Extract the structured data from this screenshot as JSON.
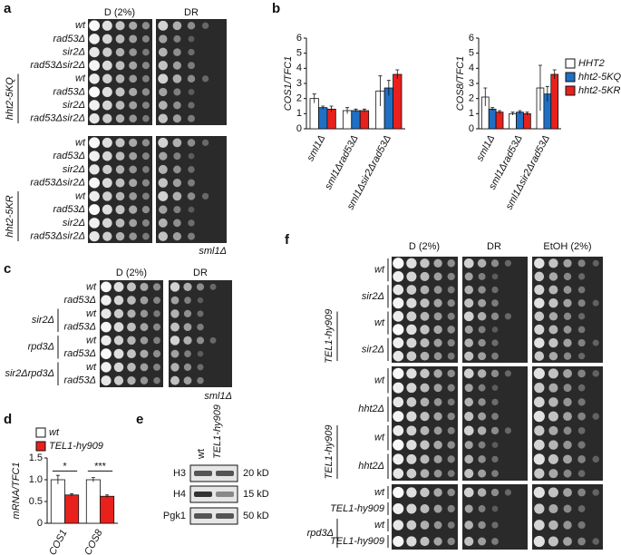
{
  "panel_labels": [
    "a",
    "b",
    "c",
    "d",
    "e",
    "f"
  ],
  "panel_a": {
    "columns": [
      "D (2%)",
      "DR"
    ],
    "blocks": [
      {
        "group": "hht2-5KQ",
        "rows": [
          "wt",
          "rad53Δ",
          "sir2Δ",
          "rad53Δsir2Δ",
          "wt",
          "rad53Δ",
          "sir2Δ",
          "rad53Δsir2Δ"
        ]
      },
      {
        "group": "hht2-5KR",
        "rows": [
          "wt",
          "rad53Δ",
          "sir2Δ",
          "rad53Δsir2Δ",
          "wt",
          "rad53Δ",
          "sir2Δ",
          "rad53Δsir2Δ"
        ]
      }
    ],
    "footnote": "sml1Δ"
  },
  "panel_c": {
    "columns": [
      "D (2%)",
      "DR"
    ],
    "rows": [
      "wt",
      "rad53Δ",
      "wt",
      "rad53Δ",
      "wt",
      "rad53Δ",
      "wt",
      "rad53Δ"
    ],
    "groups": [
      "sir2Δ",
      "rpd3Δ",
      "sir2Δrpd3Δ"
    ],
    "footnote": "sml1Δ"
  },
  "panel_e": {
    "lanes": [
      "wt",
      "TEL1-hy909"
    ],
    "proteins": [
      "H3",
      "H4",
      "Pgk1"
    ],
    "sizes": [
      "20 kD",
      "15 kD",
      "50 kD"
    ]
  },
  "panel_f": {
    "columns": [
      "D (2%)",
      "DR",
      "EtOH (2%)"
    ],
    "blocks": [
      {
        "group": "TEL1-hy909",
        "rows": [
          "wt",
          "sir2Δ",
          "wt",
          "sir2Δ"
        ]
      },
      {
        "group": "TEL1-hy909",
        "rows": [
          "wt",
          "hht2Δ",
          "wt",
          "hht2Δ"
        ]
      },
      {
        "group": "rpd3Δ",
        "rows": [
          "wt",
          "TEL1-hy909",
          "wt",
          "TEL1-hy909"
        ]
      }
    ]
  },
  "chart_data": [
    {
      "type": "bar",
      "y_label": "COS1/TFC1",
      "categories": [
        "sml1Δ",
        "sml1Δrad53Δ",
        "sml1Δsir2Δrad53Δ"
      ],
      "series": [
        {
          "name": "HHT2",
          "color": "#ffffff",
          "values": [
            2.0,
            1.2,
            2.5
          ],
          "errors": [
            0.3,
            0.2,
            1.0
          ]
        },
        {
          "name": "hht2-5KQ",
          "color": "#1f6fc5",
          "values": [
            1.4,
            1.2,
            2.7
          ],
          "errors": [
            0.1,
            0.1,
            0.5
          ]
        },
        {
          "name": "hht2-5KR",
          "color": "#e8211c",
          "values": [
            1.3,
            1.2,
            3.6
          ],
          "errors": [
            0.2,
            0.1,
            0.3
          ]
        }
      ],
      "ylim": [
        0,
        6
      ],
      "yticks": [
        0,
        1,
        2,
        3,
        4,
        5,
        6
      ],
      "legend": "right"
    },
    {
      "type": "bar",
      "y_label": "COS8/TFC1",
      "categories": [
        "sml1Δ",
        "sml1Δrad53Δ",
        "sml1Δsir2Δrad53Δ"
      ],
      "series": [
        {
          "color": "#ffffff",
          "values": [
            2.1,
            1.0,
            2.7
          ],
          "errors": [
            0.6,
            0.1,
            1.5
          ]
        },
        {
          "color": "#1f6fc5",
          "values": [
            1.3,
            1.1,
            2.3
          ],
          "errors": [
            0.1,
            0.1,
            0.5
          ]
        },
        {
          "color": "#e8211c",
          "values": [
            1.1,
            1.0,
            3.6
          ],
          "errors": [
            0.1,
            0.1,
            0.3
          ]
        }
      ],
      "ylim": [
        0,
        6
      ],
      "yticks": [
        0,
        1,
        2,
        3,
        4,
        5,
        6
      ]
    },
    {
      "type": "bar",
      "y_label": "mRNA/TFC1",
      "categories": [
        "COS1",
        "COS8"
      ],
      "series": [
        {
          "name": "wt",
          "color": "#ffffff",
          "values": [
            1.0,
            1.0
          ],
          "errors": [
            0.1,
            0.05
          ]
        },
        {
          "name": "TEL1-hy909",
          "color": "#e8211c",
          "values": [
            0.65,
            0.62
          ],
          "errors": [
            0.03,
            0.03
          ]
        }
      ],
      "annotations": [
        "*",
        "***"
      ],
      "ylim": [
        0,
        1.5
      ],
      "yticks": [
        0,
        0.5,
        {
          "value": 1,
          "label": "1.0"
        },
        1.5
      ],
      "legend": "top-left"
    }
  ]
}
